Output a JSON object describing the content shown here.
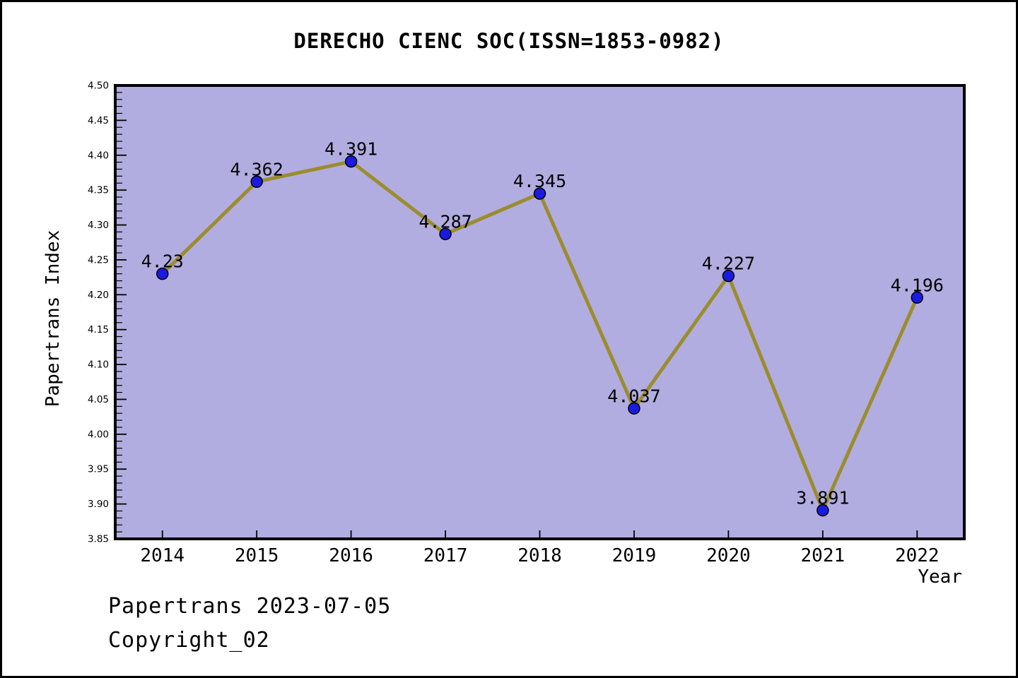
{
  "title": "DERECHO CIENC SOC(ISSN=1853-0982)",
  "footer": {
    "line1": "Papertrans 2023-07-05",
    "line2": "Copyright_02"
  },
  "chart_data": {
    "type": "line",
    "title": "DERECHO CIENC SOC(ISSN=1853-0982)",
    "xlabel": "Year",
    "ylabel": "Papertrans Index",
    "categories": [
      "2014",
      "2015",
      "2016",
      "2017",
      "2018",
      "2019",
      "2020",
      "2021",
      "2022"
    ],
    "values": [
      4.23,
      4.362,
      4.391,
      4.287,
      4.345,
      4.037,
      4.227,
      3.891,
      4.196
    ],
    "point_labels": [
      "4.23",
      "4.362",
      "4.391",
      "4.287",
      "4.345",
      "4.037",
      "4.227",
      "3.891",
      "4.196"
    ],
    "ylim": [
      3.85,
      4.5
    ],
    "ytick_major_step": 0.05,
    "ytick_minor_step": 0.01,
    "grid": false,
    "legend": null,
    "colors": {
      "line": "#9b8c2d",
      "marker_fill": "#1a1ae0",
      "marker_edge": "#000000",
      "plot_background": "#b2ade0",
      "page_background": "#ffffff",
      "text": "#000000"
    }
  }
}
